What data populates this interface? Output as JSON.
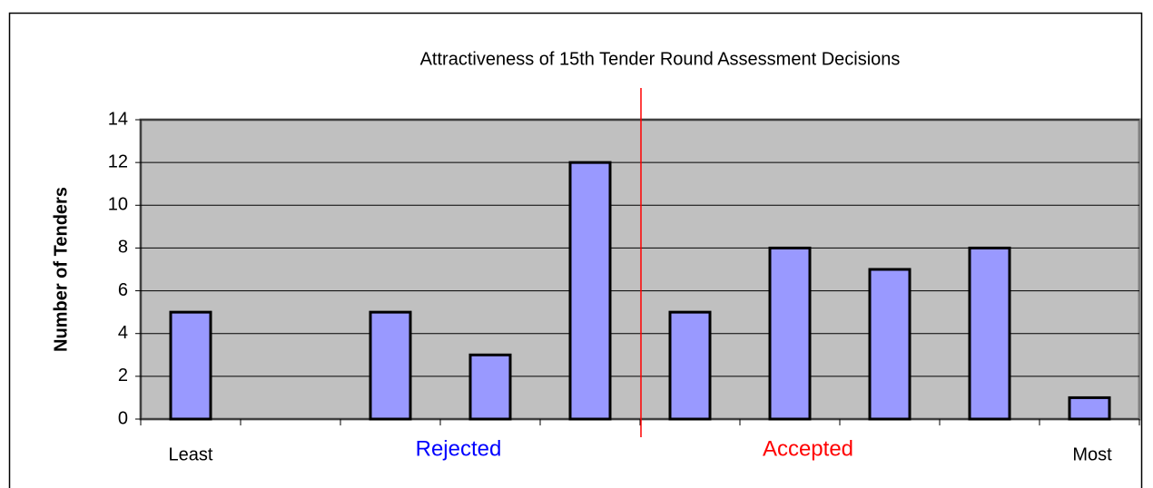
{
  "chart_data": {
    "type": "bar",
    "title": "Attractiveness of 15th Tender Round Assessment Decisions",
    "y_label": "Number of Tenders",
    "categories": [
      null,
      null,
      null,
      null,
      null,
      null,
      null,
      null,
      null,
      null
    ],
    "values": [
      5,
      0,
      5,
      3,
      12,
      5,
      8,
      7,
      8,
      1
    ],
    "color": "#9999ff",
    "ylim": [
      0,
      14
    ],
    "yticks": [
      0,
      2,
      4,
      6,
      8,
      10,
      12,
      14
    ],
    "grid": true,
    "annotations": [
      {
        "text": "Least",
        "color": "#000000"
      },
      {
        "text": "Rejected",
        "color": "#0000ff"
      },
      {
        "text": "Accepted",
        "color": "#ff0000"
      },
      {
        "text": "Most",
        "color": "#000000"
      }
    ]
  }
}
